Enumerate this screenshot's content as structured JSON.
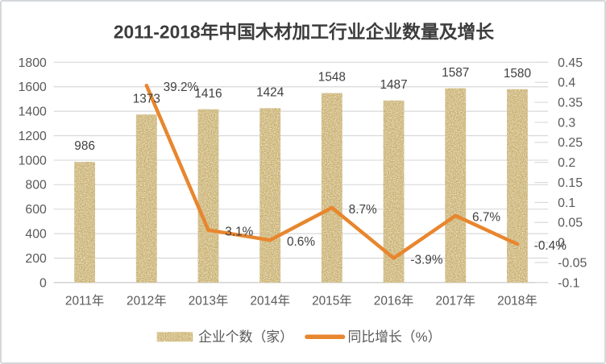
{
  "title": "2011-2018年中国木材加工行业企业数量及增长",
  "chart_data": {
    "type": "combo",
    "categories": [
      "2011年",
      "2012年",
      "2013年",
      "2014年",
      "2015年",
      "2016年",
      "2017年",
      "2018年"
    ],
    "series": [
      {
        "name": "企业个数（家）",
        "type": "bar",
        "axis": "left",
        "color": "#c6ac6b",
        "values": [
          986,
          1373,
          1416,
          1424,
          1548,
          1487,
          1587,
          1580
        ],
        "labels": [
          "986",
          "1373",
          "1416",
          "1424",
          "1548",
          "1487",
          "1587",
          "1580"
        ]
      },
      {
        "name": "同比增长（%）",
        "type": "line",
        "axis": "right",
        "color": "#e8862e",
        "values": [
          null,
          0.392,
          0.031,
          0.006,
          0.087,
          -0.039,
          0.067,
          -0.004
        ],
        "labels": [
          "",
          "39.2%",
          "3.1%",
          "0.6%",
          "8.7%",
          "-3.9%",
          "6.7%",
          "-0.4%"
        ]
      }
    ],
    "left_axis": {
      "min": 0,
      "max": 1800,
      "tick_labels": [
        "0",
        "200",
        "400",
        "600",
        "800",
        "1000",
        "1200",
        "1400",
        "1600",
        "1800"
      ]
    },
    "right_axis": {
      "min": -0.1,
      "max": 0.45,
      "tick_labels": [
        "-0.1",
        "-0.05",
        "0",
        "0.05",
        "0.1",
        "0.15",
        "0.2",
        "0.25",
        "0.3",
        "0.35",
        "0.4",
        "0.45"
      ]
    },
    "grid": true,
    "legend_position": "bottom"
  },
  "colors": {
    "grid": "#d9d9d9",
    "zero_line": "#c8c8c8",
    "axis_text": "#595959",
    "label_text": "#404040",
    "title_text": "#3d3d3d",
    "bar_base": "#c6ac6b",
    "line": "#e8862e",
    "border": "#d5d8da"
  }
}
